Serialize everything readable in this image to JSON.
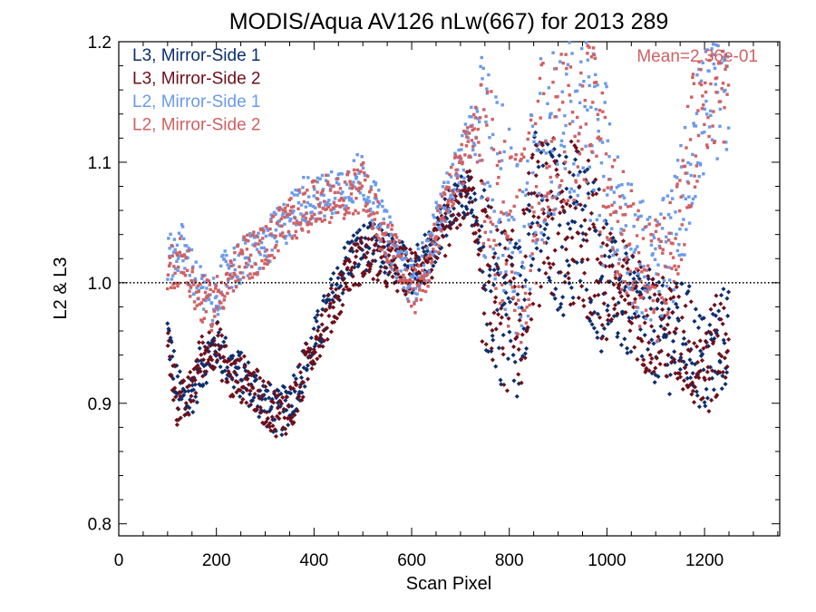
{
  "chart_data": {
    "type": "scatter",
    "title": "MODIS/Aqua AV126 nLw(667) for 2013 289",
    "xlabel": "Scan Pixel",
    "ylabel": "L2 & L3",
    "xlim": [
      0,
      1354
    ],
    "ylim": [
      0.79,
      1.2
    ],
    "xticks": [
      0,
      200,
      400,
      600,
      800,
      1000,
      1200
    ],
    "xtick_labels": [
      "0",
      "200",
      "400",
      "600",
      "800",
      "1000",
      "1200"
    ],
    "yticks": [
      0.8,
      0.9,
      1.0,
      1.1,
      1.2
    ],
    "ytick_labels": [
      "0.8",
      "0.9",
      "1.0",
      "1.1",
      "1.2"
    ],
    "reference_line": 1.0,
    "legend_position": "top-left",
    "annotation": "Mean=2.36e-01",
    "series": [
      {
        "name": "L3, Mirror-Side 1",
        "color": "#0d2e6e",
        "trend_x": [
          100,
          120,
          140,
          170,
          200,
          230,
          260,
          300,
          330,
          360,
          400,
          440,
          470,
          500,
          530,
          560,
          600,
          640,
          680,
          720,
          740,
          760,
          790,
          820,
          850,
          880,
          910,
          940,
          970,
          1000,
          1040,
          1080,
          1120,
          1160,
          1200,
          1250
        ],
        "trend_y": [
          0.96,
          0.91,
          0.9,
          0.93,
          0.95,
          0.93,
          0.92,
          0.9,
          0.89,
          0.91,
          0.95,
          0.99,
          1.02,
          1.03,
          1.03,
          1.02,
          1.01,
          1.03,
          1.06,
          1.08,
          1.02,
          1.0,
          0.98,
          0.97,
          1.06,
          1.05,
          1.04,
          1.05,
          1.03,
          1.0,
          0.98,
          0.97,
          0.95,
          0.96,
          0.93,
          0.96
        ]
      },
      {
        "name": "L3, Mirror-Side 2",
        "color": "#6e0f1a",
        "trend_x": [
          100,
          120,
          140,
          170,
          200,
          230,
          260,
          300,
          330,
          360,
          400,
          440,
          470,
          500,
          530,
          560,
          600,
          640,
          680,
          720,
          740,
          760,
          790,
          820,
          850,
          880,
          910,
          940,
          970,
          1000,
          1040,
          1080,
          1120,
          1160,
          1200,
          1250
        ],
        "trend_y": [
          0.95,
          0.9,
          0.9,
          0.94,
          0.95,
          0.92,
          0.92,
          0.9,
          0.89,
          0.9,
          0.95,
          0.98,
          1.01,
          1.02,
          1.02,
          1.01,
          1.01,
          1.02,
          1.05,
          1.08,
          1.02,
          1.0,
          0.98,
          0.97,
          1.05,
          1.05,
          1.05,
          1.05,
          1.03,
          1.0,
          0.99,
          0.97,
          0.96,
          0.95,
          0.93,
          0.96
        ]
      },
      {
        "name": "L2, Mirror-Side 1",
        "color": "#6b9aea",
        "trend_x": [
          100,
          130,
          160,
          190,
          220,
          260,
          300,
          340,
          380,
          420,
          460,
          500,
          520,
          540,
          560,
          600,
          630,
          660,
          700,
          730,
          760,
          790,
          830,
          870,
          910,
          950,
          990,
          1020,
          1060,
          1100,
          1140,
          1180,
          1210,
          1250
        ],
        "trend_y": [
          1.02,
          1.03,
          1.0,
          0.98,
          1.01,
          1.02,
          1.03,
          1.05,
          1.07,
          1.07,
          1.08,
          1.09,
          1.07,
          1.05,
          1.03,
          1.0,
          1.02,
          1.06,
          1.1,
          1.13,
          1.09,
          1.06,
          1.03,
          1.12,
          1.15,
          1.14,
          1.1,
          1.06,
          1.03,
          1.0,
          1.04,
          1.12,
          1.15,
          1.16
        ]
      },
      {
        "name": "L2, Mirror-Side 2",
        "color": "#d16062",
        "trend_x": [
          100,
          130,
          160,
          190,
          220,
          260,
          300,
          340,
          380,
          420,
          460,
          500,
          520,
          540,
          560,
          600,
          630,
          660,
          700,
          730,
          760,
          790,
          830,
          870,
          910,
          950,
          990,
          1020,
          1060,
          1100,
          1140,
          1180,
          1210,
          1250
        ],
        "trend_y": [
          1.01,
          1.02,
          0.99,
          0.98,
          1.0,
          1.02,
          1.03,
          1.05,
          1.06,
          1.07,
          1.07,
          1.08,
          1.06,
          1.04,
          1.03,
          0.99,
          1.01,
          1.05,
          1.1,
          1.13,
          1.08,
          1.05,
          1.03,
          1.11,
          1.15,
          1.15,
          1.1,
          1.05,
          1.02,
          1.0,
          1.03,
          1.13,
          1.16,
          1.17
        ]
      }
    ]
  }
}
